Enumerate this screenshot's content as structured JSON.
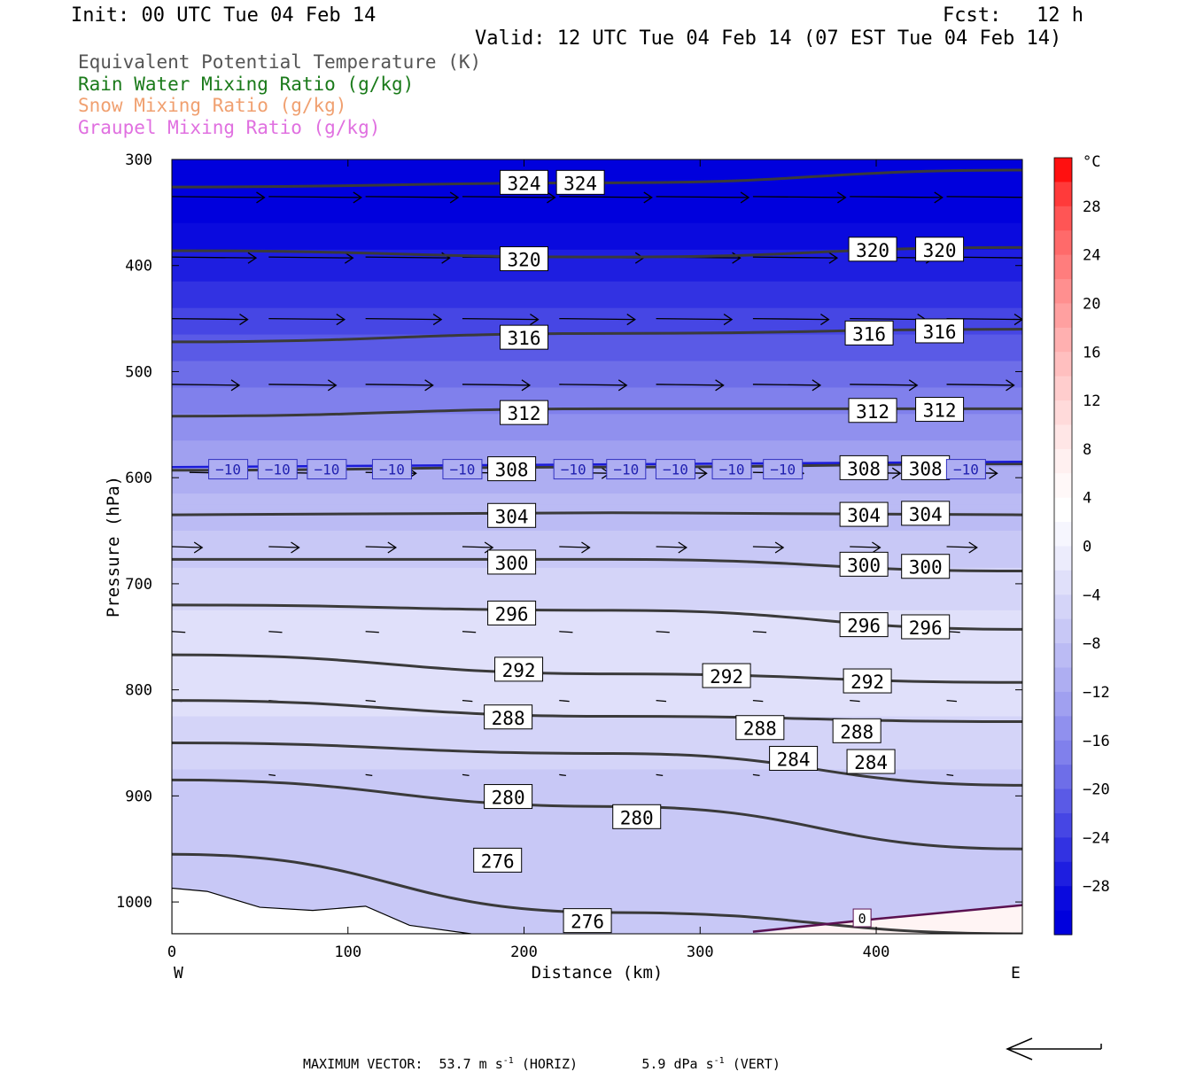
{
  "header": {
    "init": "Init: 00 UTC Tue 04 Feb 14",
    "fcst": "Fcst:   12 h",
    "valid": "Valid: 12 UTC Tue 04 Feb 14 (07 EST Tue 04 Feb 14)"
  },
  "legend_lines": [
    {
      "text": "Equivalent Potential Temperature (K)",
      "color": "#555555"
    },
    {
      "text": "Rain Water Mixing Ratio (g/kg)",
      "color": "#1a7a1a"
    },
    {
      "text": "Snow Mixing Ratio (g/kg)",
      "color": "#f0a070"
    },
    {
      "text": "Graupel Mixing Ratio (g/kg)",
      "color": "#e070e0"
    }
  ],
  "footer": {
    "max_vector_label": "MAXIMUM VECTOR:",
    "horiz_value": "53.7 m s",
    "horiz_exp": "-1",
    "horiz_tag": "(HORIZ)",
    "vert_value": "5.9 dPa s",
    "vert_exp": "-1",
    "vert_tag": "(VERT)"
  },
  "chart_data": {
    "type": "cross-section",
    "xlabel": "Distance (km)",
    "ylabel": "Pressure (hPa)",
    "xlim": [
      0,
      483
    ],
    "ylim": [
      1030,
      300
    ],
    "x_ticks": [
      0,
      100,
      200,
      300,
      400
    ],
    "y_ticks": [
      300,
      400,
      500,
      600,
      700,
      800,
      900,
      1000
    ],
    "west_label": "W",
    "east_label": "E",
    "colorbar": {
      "unit": "°C",
      "tick_labels": [
        "28",
        "24",
        "20",
        "16",
        "12",
        "8",
        "4",
        "0",
        "−4",
        "−8",
        "−12",
        "−16",
        "−20",
        "−24",
        "−28"
      ],
      "levels": [
        32,
        30,
        28,
        26,
        24,
        22,
        20,
        18,
        16,
        14,
        12,
        10,
        8,
        6,
        4,
        2,
        0,
        -2,
        -4,
        -6,
        -8,
        -10,
        -12,
        -14,
        -16,
        -18,
        -20,
        -22,
        -24,
        -26,
        -28,
        -30,
        -32
      ],
      "colors": [
        "#ff1010",
        "#ff3a3a",
        "#ff5555",
        "#ff6a6a",
        "#ff7d7d",
        "#ff8f8f",
        "#ffa0a0",
        "#ffb0b0",
        "#ffbfbf",
        "#ffcdcd",
        "#ffdada",
        "#ffe6e6",
        "#fff0f0",
        "#fff8f8",
        "#ffffff",
        "#f6f6fe",
        "#ececfc",
        "#e0e0fa",
        "#d4d4f8",
        "#c8c8f6",
        "#bbbbf4",
        "#aeaef2",
        "#a0a0f0",
        "#9090ee",
        "#8080ec",
        "#6e6ee8",
        "#5a5ae6",
        "#4646e4",
        "#3232e2",
        "#1e1ee0",
        "#0a0ade",
        "#0000dd"
      ]
    },
    "temperature_profile_c": [
      {
        "p": 300,
        "t": -31
      },
      {
        "p": 360,
        "t": -30
      },
      {
        "p": 400,
        "t": -27
      },
      {
        "p": 450,
        "t": -23
      },
      {
        "p": 500,
        "t": -19
      },
      {
        "p": 550,
        "t": -15
      },
      {
        "p": 600,
        "t": -11
      },
      {
        "p": 650,
        "t": -8
      },
      {
        "p": 700,
        "t": -5
      },
      {
        "p": 750,
        "t": -3
      },
      {
        "p": 800,
        "t": -3
      },
      {
        "p": 850,
        "t": -5
      },
      {
        "p": 900,
        "t": -7
      },
      {
        "p": 950,
        "t": -8
      },
      {
        "p": 1000,
        "t": -6
      }
    ],
    "theta_e_contours": [
      {
        "value": 324,
        "points": [
          [
            0,
            326
          ],
          [
            250,
            322
          ],
          [
            483,
            310
          ]
        ],
        "labels": [
          [
            200,
            322
          ],
          [
            232,
            322
          ]
        ]
      },
      {
        "value": 320,
        "points": [
          [
            0,
            386
          ],
          [
            250,
            392
          ],
          [
            483,
            383
          ]
        ],
        "labels": [
          [
            200,
            394
          ],
          [
            398,
            385
          ],
          [
            436,
            385
          ]
        ]
      },
      {
        "value": 316,
        "points": [
          [
            0,
            472
          ],
          [
            250,
            464
          ],
          [
            483,
            460
          ]
        ],
        "labels": [
          [
            200,
            468
          ],
          [
            396,
            464
          ],
          [
            436,
            462
          ]
        ]
      },
      {
        "value": 312,
        "points": [
          [
            0,
            542
          ],
          [
            250,
            535
          ],
          [
            483,
            535
          ]
        ],
        "labels": [
          [
            200,
            539
          ],
          [
            398,
            537
          ],
          [
            436,
            536
          ]
        ]
      },
      {
        "value": 308,
        "points": [
          [
            0,
            593
          ],
          [
            250,
            590
          ],
          [
            483,
            587
          ]
        ],
        "labels": [
          [
            193,
            592
          ],
          [
            393,
            591
          ],
          [
            428,
            591
          ]
        ]
      },
      {
        "value": 304,
        "points": [
          [
            0,
            635
          ],
          [
            250,
            633
          ],
          [
            483,
            635
          ]
        ],
        "labels": [
          [
            193,
            636
          ],
          [
            393,
            635
          ],
          [
            428,
            634
          ]
        ]
      },
      {
        "value": 300,
        "points": [
          [
            0,
            677
          ],
          [
            250,
            677
          ],
          [
            483,
            688
          ]
        ],
        "labels": [
          [
            193,
            680
          ],
          [
            393,
            682
          ],
          [
            428,
            684
          ]
        ]
      },
      {
        "value": 296,
        "points": [
          [
            0,
            720
          ],
          [
            250,
            725
          ],
          [
            483,
            743
          ]
        ],
        "labels": [
          [
            193,
            728
          ],
          [
            393,
            739
          ],
          [
            428,
            741
          ]
        ]
      },
      {
        "value": 292,
        "points": [
          [
            0,
            767
          ],
          [
            250,
            785
          ],
          [
            483,
            793
          ]
        ],
        "labels": [
          [
            197,
            781
          ],
          [
            315,
            787
          ],
          [
            395,
            792
          ]
        ]
      },
      {
        "value": 288,
        "points": [
          [
            0,
            810
          ],
          [
            250,
            825
          ],
          [
            483,
            830
          ]
        ],
        "labels": [
          [
            191,
            826
          ],
          [
            334,
            836
          ],
          [
            389,
            839
          ]
        ]
      },
      {
        "value": 284,
        "points": [
          [
            0,
            850
          ],
          [
            250,
            860
          ],
          [
            483,
            890
          ]
        ],
        "labels": [
          [
            353,
            865
          ],
          [
            397,
            868
          ]
        ]
      },
      {
        "value": 280,
        "points": [
          [
            0,
            885
          ],
          [
            250,
            910
          ],
          [
            483,
            950
          ]
        ],
        "labels": [
          [
            191,
            901
          ],
          [
            264,
            920
          ]
        ]
      },
      {
        "value": 276,
        "points": [
          [
            0,
            955
          ],
          [
            250,
            1010
          ],
          [
            483,
            1030
          ]
        ],
        "labels": [
          [
            185,
            961
          ],
          [
            236,
            1018
          ]
        ]
      }
    ],
    "isotherm_minus10_labels_x": [
      32,
      60,
      88,
      125,
      165,
      228,
      258,
      286,
      318,
      347,
      451
    ],
    "isotherm_0_label": {
      "x": 392,
      "p": 1015,
      "text": "0"
    },
    "label_minus10": "−10"
  }
}
